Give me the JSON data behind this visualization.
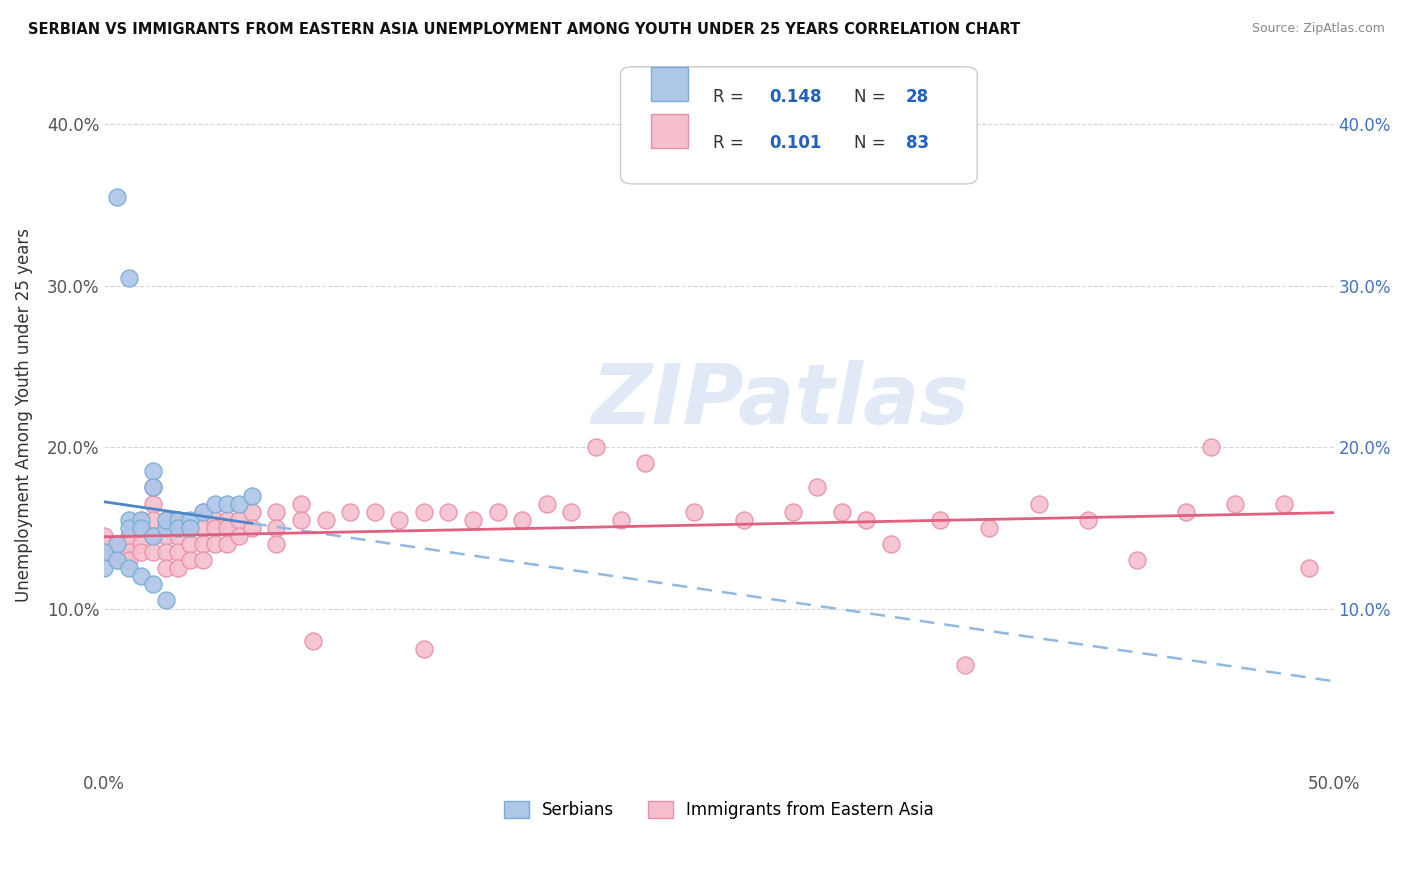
{
  "title": "SERBIAN VS IMMIGRANTS FROM EASTERN ASIA UNEMPLOYMENT AMONG YOUTH UNDER 25 YEARS CORRELATION CHART",
  "source": "Source: ZipAtlas.com",
  "ylabel": "Unemployment Among Youth under 25 years",
  "xlim": [
    0.0,
    0.5
  ],
  "ylim": [
    0.0,
    0.44
  ],
  "legend_r1": "0.148",
  "legend_n1": "28",
  "legend_r2": "0.101",
  "legend_n2": "83",
  "watermark": "ZIPatlas",
  "serbian_color": "#aec6e8",
  "serbian_edge": "#7aadd4",
  "eastern_asia_color": "#f5bfce",
  "eastern_asia_edge": "#e890a8",
  "trend_serbian_color": "#4a86c8",
  "trend_eastern_color": "#e06080",
  "trend_dashed_color": "#90b8e0",
  "blue_r_color": "#2060c0",
  "serbian_dots": [
    [
      0.005,
      0.355
    ],
    [
      0.01,
      0.305
    ],
    [
      0.02,
      0.185
    ],
    [
      0.02,
      0.175
    ],
    [
      0.005,
      0.14
    ],
    [
      0.01,
      0.155
    ],
    [
      0.01,
      0.15
    ],
    [
      0.015,
      0.155
    ],
    [
      0.015,
      0.15
    ],
    [
      0.02,
      0.145
    ],
    [
      0.025,
      0.15
    ],
    [
      0.025,
      0.155
    ],
    [
      0.03,
      0.155
    ],
    [
      0.03,
      0.15
    ],
    [
      0.035,
      0.155
    ],
    [
      0.035,
      0.15
    ],
    [
      0.04,
      0.16
    ],
    [
      0.045,
      0.165
    ],
    [
      0.05,
      0.165
    ],
    [
      0.055,
      0.165
    ],
    [
      0.06,
      0.17
    ],
    [
      0.0,
      0.135
    ],
    [
      0.0,
      0.125
    ],
    [
      0.005,
      0.13
    ],
    [
      0.01,
      0.125
    ],
    [
      0.015,
      0.12
    ],
    [
      0.02,
      0.115
    ],
    [
      0.025,
      0.105
    ]
  ],
  "eastern_dots": [
    [
      0.0,
      0.145
    ],
    [
      0.0,
      0.14
    ],
    [
      0.0,
      0.135
    ],
    [
      0.005,
      0.14
    ],
    [
      0.005,
      0.135
    ],
    [
      0.005,
      0.13
    ],
    [
      0.01,
      0.145
    ],
    [
      0.01,
      0.14
    ],
    [
      0.01,
      0.135
    ],
    [
      0.01,
      0.13
    ],
    [
      0.015,
      0.155
    ],
    [
      0.015,
      0.15
    ],
    [
      0.015,
      0.14
    ],
    [
      0.015,
      0.135
    ],
    [
      0.02,
      0.175
    ],
    [
      0.02,
      0.165
    ],
    [
      0.02,
      0.155
    ],
    [
      0.02,
      0.145
    ],
    [
      0.02,
      0.135
    ],
    [
      0.025,
      0.155
    ],
    [
      0.025,
      0.145
    ],
    [
      0.025,
      0.135
    ],
    [
      0.025,
      0.125
    ],
    [
      0.03,
      0.155
    ],
    [
      0.03,
      0.145
    ],
    [
      0.03,
      0.135
    ],
    [
      0.03,
      0.125
    ],
    [
      0.035,
      0.15
    ],
    [
      0.035,
      0.14
    ],
    [
      0.035,
      0.13
    ],
    [
      0.04,
      0.16
    ],
    [
      0.04,
      0.15
    ],
    [
      0.04,
      0.14
    ],
    [
      0.04,
      0.13
    ],
    [
      0.045,
      0.155
    ],
    [
      0.045,
      0.15
    ],
    [
      0.045,
      0.14
    ],
    [
      0.05,
      0.155
    ],
    [
      0.05,
      0.15
    ],
    [
      0.05,
      0.14
    ],
    [
      0.055,
      0.155
    ],
    [
      0.055,
      0.145
    ],
    [
      0.06,
      0.16
    ],
    [
      0.06,
      0.15
    ],
    [
      0.07,
      0.16
    ],
    [
      0.07,
      0.15
    ],
    [
      0.07,
      0.14
    ],
    [
      0.08,
      0.165
    ],
    [
      0.08,
      0.155
    ],
    [
      0.09,
      0.155
    ],
    [
      0.1,
      0.16
    ],
    [
      0.11,
      0.16
    ],
    [
      0.12,
      0.155
    ],
    [
      0.13,
      0.16
    ],
    [
      0.14,
      0.16
    ],
    [
      0.15,
      0.155
    ],
    [
      0.16,
      0.16
    ],
    [
      0.17,
      0.155
    ],
    [
      0.18,
      0.165
    ],
    [
      0.19,
      0.16
    ],
    [
      0.2,
      0.2
    ],
    [
      0.21,
      0.155
    ],
    [
      0.22,
      0.19
    ],
    [
      0.24,
      0.16
    ],
    [
      0.26,
      0.155
    ],
    [
      0.28,
      0.16
    ],
    [
      0.29,
      0.175
    ],
    [
      0.3,
      0.16
    ],
    [
      0.31,
      0.155
    ],
    [
      0.32,
      0.14
    ],
    [
      0.34,
      0.155
    ],
    [
      0.36,
      0.15
    ],
    [
      0.38,
      0.165
    ],
    [
      0.4,
      0.155
    ],
    [
      0.42,
      0.13
    ],
    [
      0.44,
      0.16
    ],
    [
      0.45,
      0.2
    ],
    [
      0.46,
      0.165
    ],
    [
      0.48,
      0.165
    ],
    [
      0.49,
      0.125
    ],
    [
      0.35,
      0.065
    ],
    [
      0.13,
      0.075
    ],
    [
      0.085,
      0.08
    ]
  ]
}
